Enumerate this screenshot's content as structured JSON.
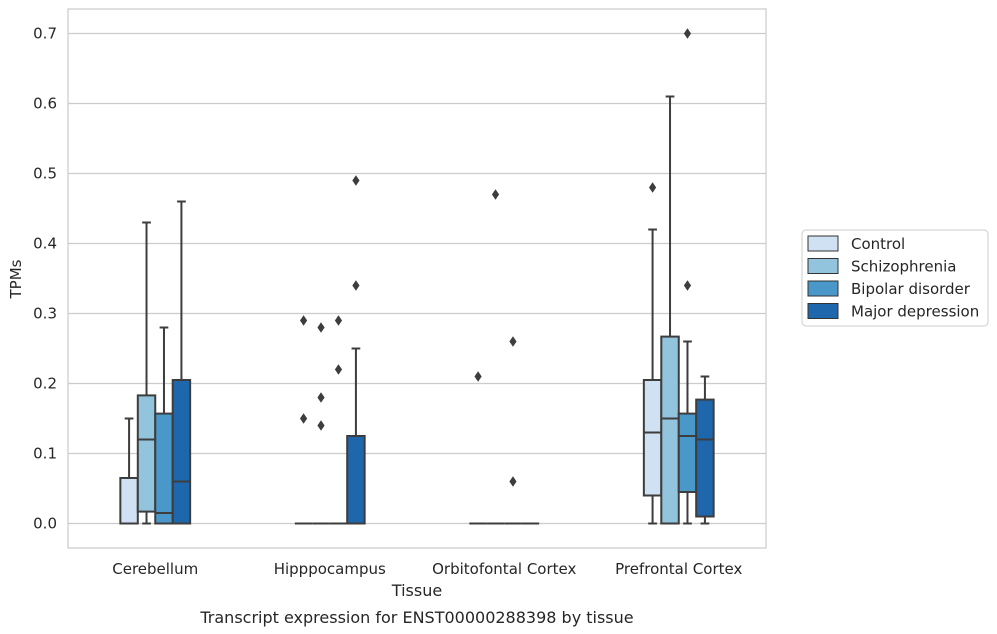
{
  "chart_data": {
    "type": "box",
    "caption": "Transcript expression for ENST00000288398 by tissue",
    "xlabel": "Tissue",
    "ylabel": "TPMs",
    "ylim": [
      -0.035,
      0.735
    ],
    "yticks": [
      0.0,
      0.1,
      0.2,
      0.3,
      0.4,
      0.5,
      0.6,
      0.7
    ],
    "ytick_labels": [
      "0.0",
      "0.1",
      "0.2",
      "0.3",
      "0.4",
      "0.5",
      "0.6",
      "0.7"
    ],
    "grid": "horizontal",
    "legend_position": "right",
    "categories": [
      "Cerebellum",
      "Hipppocampus",
      "Orbitofontal Cortex",
      "Prefrontal Cortex"
    ],
    "series": [
      {
        "name": "Control",
        "color": "#cfe1f2",
        "boxes": [
          {
            "min": 0.0,
            "q1": 0.0,
            "median": 0.0,
            "q3": 0.065,
            "max": 0.15,
            "outliers": []
          },
          {
            "min": 0.0,
            "q1": 0.0,
            "median": 0.0,
            "q3": 0.0,
            "max": 0.0,
            "outliers": [
              0.15,
              0.29
            ]
          },
          {
            "min": 0.0,
            "q1": 0.0,
            "median": 0.0,
            "q3": 0.0,
            "max": 0.0,
            "outliers": [
              0.21
            ]
          },
          {
            "min": 0.0,
            "q1": 0.04,
            "median": 0.13,
            "q3": 0.205,
            "max": 0.42,
            "outliers": [
              0.48
            ]
          }
        ]
      },
      {
        "name": "Schizophrenia",
        "color": "#93c4de",
        "boxes": [
          {
            "min": 0.0,
            "q1": 0.017,
            "median": 0.12,
            "q3": 0.183,
            "max": 0.43,
            "outliers": []
          },
          {
            "min": 0.0,
            "q1": 0.0,
            "median": 0.0,
            "q3": 0.0,
            "max": 0.0,
            "outliers": [
              0.14,
              0.18,
              0.28
            ]
          },
          {
            "min": 0.0,
            "q1": 0.0,
            "median": 0.0,
            "q3": 0.0,
            "max": 0.0,
            "outliers": [
              0.47
            ]
          },
          {
            "min": 0.0,
            "q1": 0.0,
            "median": 0.15,
            "q3": 0.267,
            "max": 0.61,
            "outliers": []
          }
        ]
      },
      {
        "name": "Bipolar disorder",
        "color": "#4a98c9",
        "boxes": [
          {
            "min": 0.0,
            "q1": 0.0,
            "median": 0.015,
            "q3": 0.157,
            "max": 0.28,
            "outliers": []
          },
          {
            "min": 0.0,
            "q1": 0.0,
            "median": 0.0,
            "q3": 0.0,
            "max": 0.0,
            "outliers": [
              0.22,
              0.29
            ]
          },
          {
            "min": 0.0,
            "q1": 0.0,
            "median": 0.0,
            "q3": 0.0,
            "max": 0.0,
            "outliers": [
              0.06,
              0.26
            ]
          },
          {
            "min": 0.0,
            "q1": 0.045,
            "median": 0.125,
            "q3": 0.157,
            "max": 0.26,
            "outliers": [
              0.34,
              0.7
            ]
          }
        ]
      },
      {
        "name": "Major depression",
        "color": "#1f67ac",
        "boxes": [
          {
            "min": 0.0,
            "q1": 0.0,
            "median": 0.06,
            "q3": 0.205,
            "max": 0.46,
            "outliers": []
          },
          {
            "min": 0.0,
            "q1": 0.0,
            "median": 0.0,
            "q3": 0.125,
            "max": 0.25,
            "outliers": [
              0.34,
              0.49
            ]
          },
          {
            "min": 0.0,
            "q1": 0.0,
            "median": 0.0,
            "q3": 0.0,
            "max": 0.0,
            "outliers": []
          },
          {
            "min": 0.0,
            "q1": 0.01,
            "median": 0.12,
            "q3": 0.177,
            "max": 0.21,
            "outliers": []
          }
        ]
      }
    ]
  }
}
